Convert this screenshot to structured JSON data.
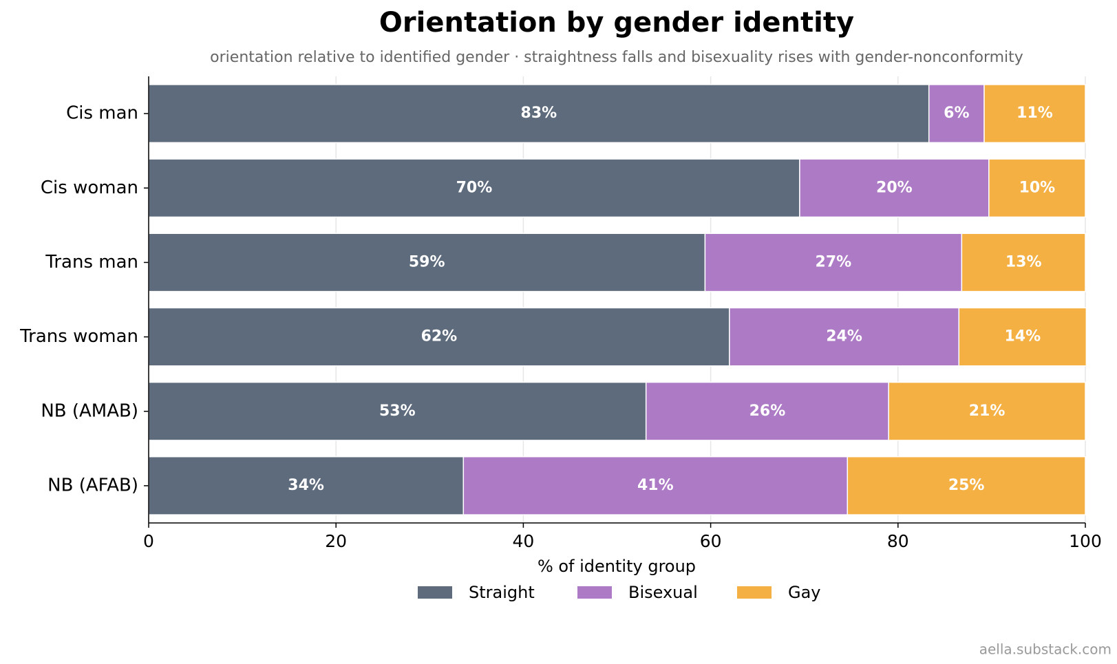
{
  "chart_data": {
    "type": "stacked_bar_horizontal",
    "title": "Orientation by gender identity",
    "subtitle": "orientation relative to identified gender · straightness falls and bisexuality rises with gender-nonconformity",
    "x_label": "% of identity group",
    "categories": [
      "Cis man",
      "Cis woman",
      "Trans man",
      "Trans woman",
      "NB (AMAB)",
      "NB (AFAB)"
    ],
    "series": [
      {
        "name": "Straight",
        "color": "#5d6b7c",
        "values": [
          83.3,
          69.5,
          59.4,
          62.0,
          53.1,
          33.6
        ],
        "value_labels": [
          "83%",
          "70%",
          "59%",
          "62%",
          "53%",
          "34%"
        ]
      },
      {
        "name": "Bisexual",
        "color": "#ad7bc5",
        "values": [
          5.9,
          20.2,
          27.4,
          24.5,
          25.9,
          41.0
        ],
        "value_labels": [
          "6%",
          "20%",
          "27%",
          "24%",
          "26%",
          "41%"
        ]
      },
      {
        "name": "Gay",
        "color": "#f4b042",
        "values": [
          10.8,
          10.3,
          13.2,
          13.6,
          21.0,
          25.4
        ],
        "value_labels": [
          "11%",
          "10%",
          "13%",
          "14%",
          "21%",
          "25%"
        ]
      }
    ],
    "xlim": [
      0,
      100
    ],
    "xticks": [
      0,
      20,
      40,
      60,
      80,
      100
    ],
    "grid": true,
    "legend": "bottom",
    "footer": "aella.substack.com"
  }
}
